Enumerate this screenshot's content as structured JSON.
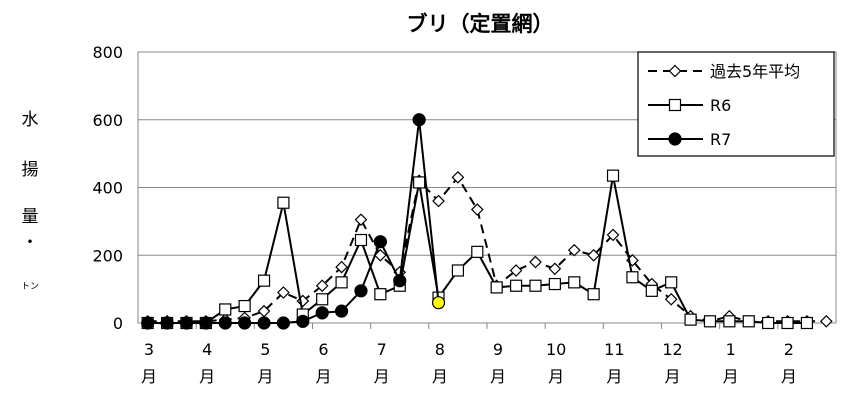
{
  "chart_data": {
    "type": "line",
    "title": "ブリ（定置網）",
    "ylabel_chars": [
      "水",
      "揚",
      "量",
      "・",
      "トン"
    ],
    "ylim": [
      0,
      800
    ],
    "yticks": [
      "0",
      "200",
      "400",
      "600",
      "800"
    ],
    "grid": true,
    "legend_position": "top-right",
    "month_labels": [
      "3",
      "4",
      "5",
      "6",
      "7",
      "8",
      "9",
      "10",
      "11",
      "12",
      "1",
      "2"
    ],
    "month_unit": "月",
    "periods_per_month": 3,
    "series": [
      {
        "name": "過去5年平均",
        "style": "dashed",
        "marker": "diamond",
        "values": [
          5,
          5,
          5,
          5,
          10,
          15,
          35,
          90,
          65,
          110,
          165,
          305,
          200,
          150,
          420,
          360,
          430,
          335,
          110,
          155,
          180,
          160,
          215,
          200,
          260,
          185,
          115,
          70,
          20,
          5,
          20,
          5,
          5,
          5,
          5,
          5
        ]
      },
      {
        "name": "R6",
        "style": "solid",
        "marker": "square",
        "values": [
          0,
          0,
          0,
          0,
          40,
          50,
          125,
          355,
          25,
          70,
          120,
          245,
          85,
          110,
          415,
          75,
          155,
          210,
          105,
          110,
          110,
          115,
          120,
          85,
          435,
          135,
          95,
          120,
          10,
          5,
          5,
          5,
          0,
          0,
          0
        ]
      },
      {
        "name": "R7",
        "style": "solid",
        "marker": "circle",
        "values": [
          0,
          0,
          0,
          0,
          0,
          0,
          0,
          0,
          5,
          30,
          35,
          95,
          240,
          125,
          600,
          60
        ]
      }
    ],
    "highlight": {
      "series": "R7",
      "index": 15,
      "color": "#ffff00"
    }
  }
}
